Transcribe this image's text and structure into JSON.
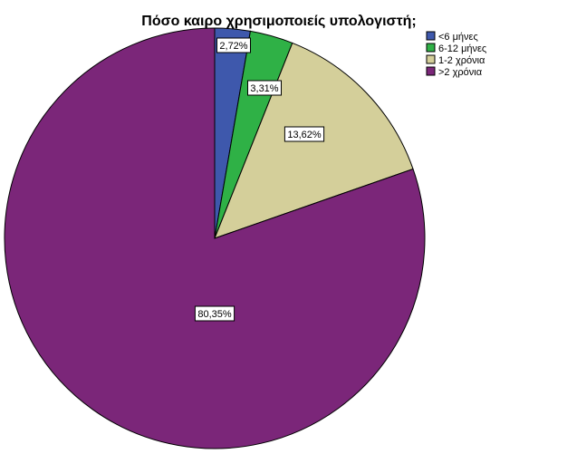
{
  "chart_data": {
    "type": "pie",
    "title": "Πόσο καιρο χρησιμοποιείς υπολογιστή;",
    "categories": [
      "<6 μήνες",
      "6-12 μήνες",
      "1-2 χρόνια",
      ">2 χρόνια"
    ],
    "values": [
      2.72,
      3.31,
      13.62,
      80.35
    ],
    "data_labels": [
      "2,72%",
      "3,31%",
      "13,62%",
      "80,35%"
    ],
    "colors": [
      "#3e58ac",
      "#2fb146",
      "#d4cf9a",
      "#7b2679"
    ],
    "legend": {
      "position": "top-right",
      "entries": [
        "<6 μήνες",
        "6-12 μήνες",
        "1-2 χρόνια",
        ">2 χρόνια"
      ]
    },
    "start_angle": "12 o'clock",
    "direction": "clockwise"
  }
}
